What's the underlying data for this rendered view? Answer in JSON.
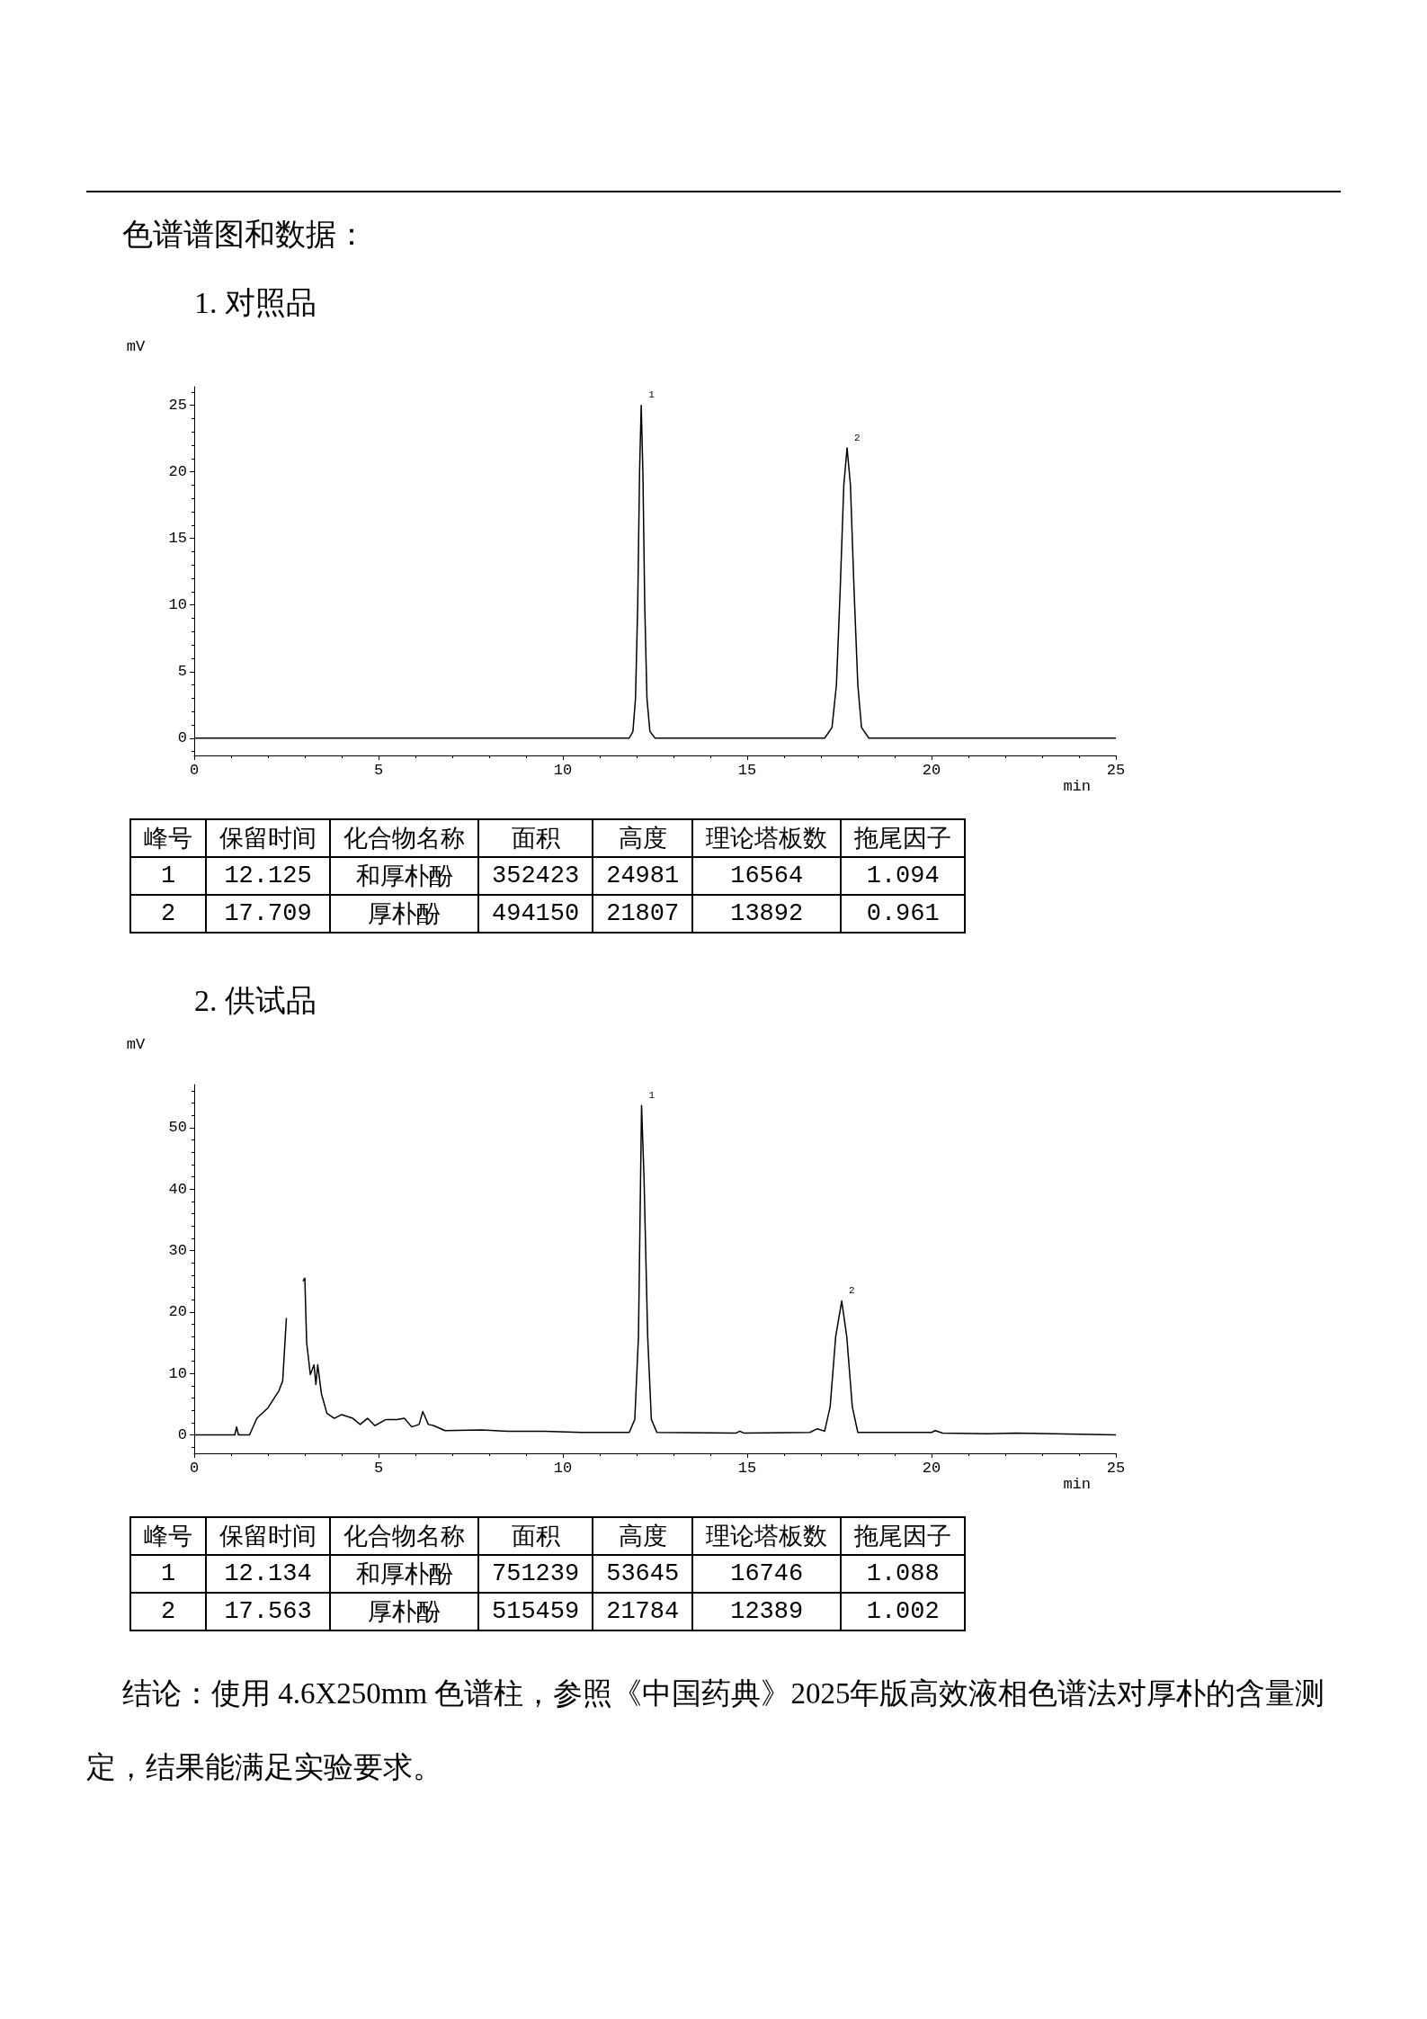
{
  "chart_data": [
    {
      "type": "line",
      "subtitle": "色谱谱图和数据：",
      "title": "1. 对照品",
      "xlabel": "min",
      "ylabel": "mV",
      "color": "#000000",
      "marker": "none",
      "line_style": "solid",
      "x": [
        0,
        11.8,
        11.9,
        11.97,
        12.03,
        12.08,
        12.125,
        12.17,
        12.22,
        12.28,
        12.36,
        12.5,
        17.1,
        17.3,
        17.42,
        17.52,
        17.62,
        17.709,
        17.8,
        17.9,
        18.0,
        18.1,
        18.3,
        25
      ],
      "values": [
        0,
        0,
        0.5,
        3,
        10,
        20,
        25.0,
        20,
        10,
        3,
        0.5,
        0,
        0,
        0.8,
        4,
        11,
        19,
        21.8,
        19,
        11,
        4,
        0.8,
        0,
        0
      ],
      "xlim": [
        0,
        25
      ],
      "xticks": [
        0,
        5,
        10,
        15,
        20,
        25
      ],
      "ylim": [
        -1.3,
        26.4
      ],
      "yticks": [
        0,
        5,
        10,
        15,
        20,
        25
      ],
      "annotations": [
        {
          "text": "1",
          "x": 12.125,
          "y": 25.0
        },
        {
          "text": "2",
          "x": 17.709,
          "y": 21.8
        },
        "峰号",
        "保留时间",
        "化合物名称",
        "面积",
        "高度",
        "理论塔板数",
        "拖尾因子",
        "1",
        "12.125",
        "和厚朴酚",
        "352423",
        "24981",
        "16564",
        "1.094",
        "2",
        "17.709",
        "厚朴酚",
        "494150",
        "21807",
        "13892",
        "0.961"
      ]
    },
    {
      "type": "line",
      "title": "2. 供试品",
      "xlabel": "min",
      "ylabel": "mV",
      "color": "#000000",
      "marker": "none",
      "line_style": "solid",
      "x": [
        0,
        1.1,
        1.15,
        1.2,
        1.5,
        1.7,
        2.0,
        2.3,
        2.4,
        2.5,
        2.55,
        2.85,
        2.95,
        3.0,
        3.05,
        3.15,
        3.25,
        3.3,
        3.35,
        3.45,
        3.6,
        3.8,
        4.0,
        4.3,
        4.5,
        4.7,
        4.9,
        5.2,
        5.5,
        5.7,
        5.9,
        6.1,
        6.2,
        6.35,
        6.5,
        6.8,
        7.8,
        8.5,
        9.5,
        10.5,
        11.8,
        11.95,
        12.05,
        12.134,
        12.2,
        12.3,
        12.4,
        12.55,
        14.7,
        14.8,
        14.9,
        16.7,
        16.9,
        17.1,
        17.25,
        17.4,
        17.563,
        17.7,
        17.85,
        18.0,
        20.0,
        20.1,
        20.3,
        21.5,
        22.3,
        25
      ],
      "values": [
        0,
        0,
        1.3,
        0,
        0,
        2.7,
        4.4,
        7.2,
        8.8,
        19,
        null,
        null,
        25,
        25.5,
        15,
        9.8,
        11.4,
        8.2,
        11.4,
        6.7,
        3.5,
        2.7,
        3.3,
        2.7,
        1.7,
        2.7,
        1.5,
        2.5,
        2.5,
        2.7,
        1.3,
        1.7,
        3.8,
        1.7,
        1.5,
        0.7,
        0.8,
        0.6,
        0.6,
        0.4,
        0.4,
        2.5,
        16,
        53.6,
        42,
        16,
        2.5,
        0.4,
        0.3,
        0.6,
        0.3,
        0.4,
        1.0,
        0.6,
        4.6,
        16,
        21.8,
        16,
        4.6,
        0.4,
        0.4,
        0.7,
        0.3,
        0.2,
        0.3,
        0
      ],
      "xlim": [
        0,
        25
      ],
      "xticks": [
        0,
        5,
        10,
        15,
        20,
        25
      ],
      "ylim": [
        -3,
        57
      ],
      "yticks": [
        0,
        10,
        20,
        30,
        40,
        50
      ],
      "annotations": [
        {
          "text": "1",
          "x": 12.134,
          "y": 53.6
        },
        {
          "text": "2",
          "x": 17.563,
          "y": 21.8
        },
        "峰号",
        "保留时间",
        "化合物名称",
        "面积",
        "高度",
        "理论塔板数",
        "拖尾因子",
        "1",
        "12.134",
        "和厚朴酚",
        "751239",
        "53645",
        "16746",
        "1.088",
        "2",
        "17.563",
        "厚朴酚",
        "515459",
        "21784",
        "12389",
        "1.002",
        "结论：使用 4.6X250mm 色谱柱，参照《中国药典》2025年版高效液相色谱法对厚朴的含量测定，结果能满足实验要求。"
      ]
    }
  ]
}
